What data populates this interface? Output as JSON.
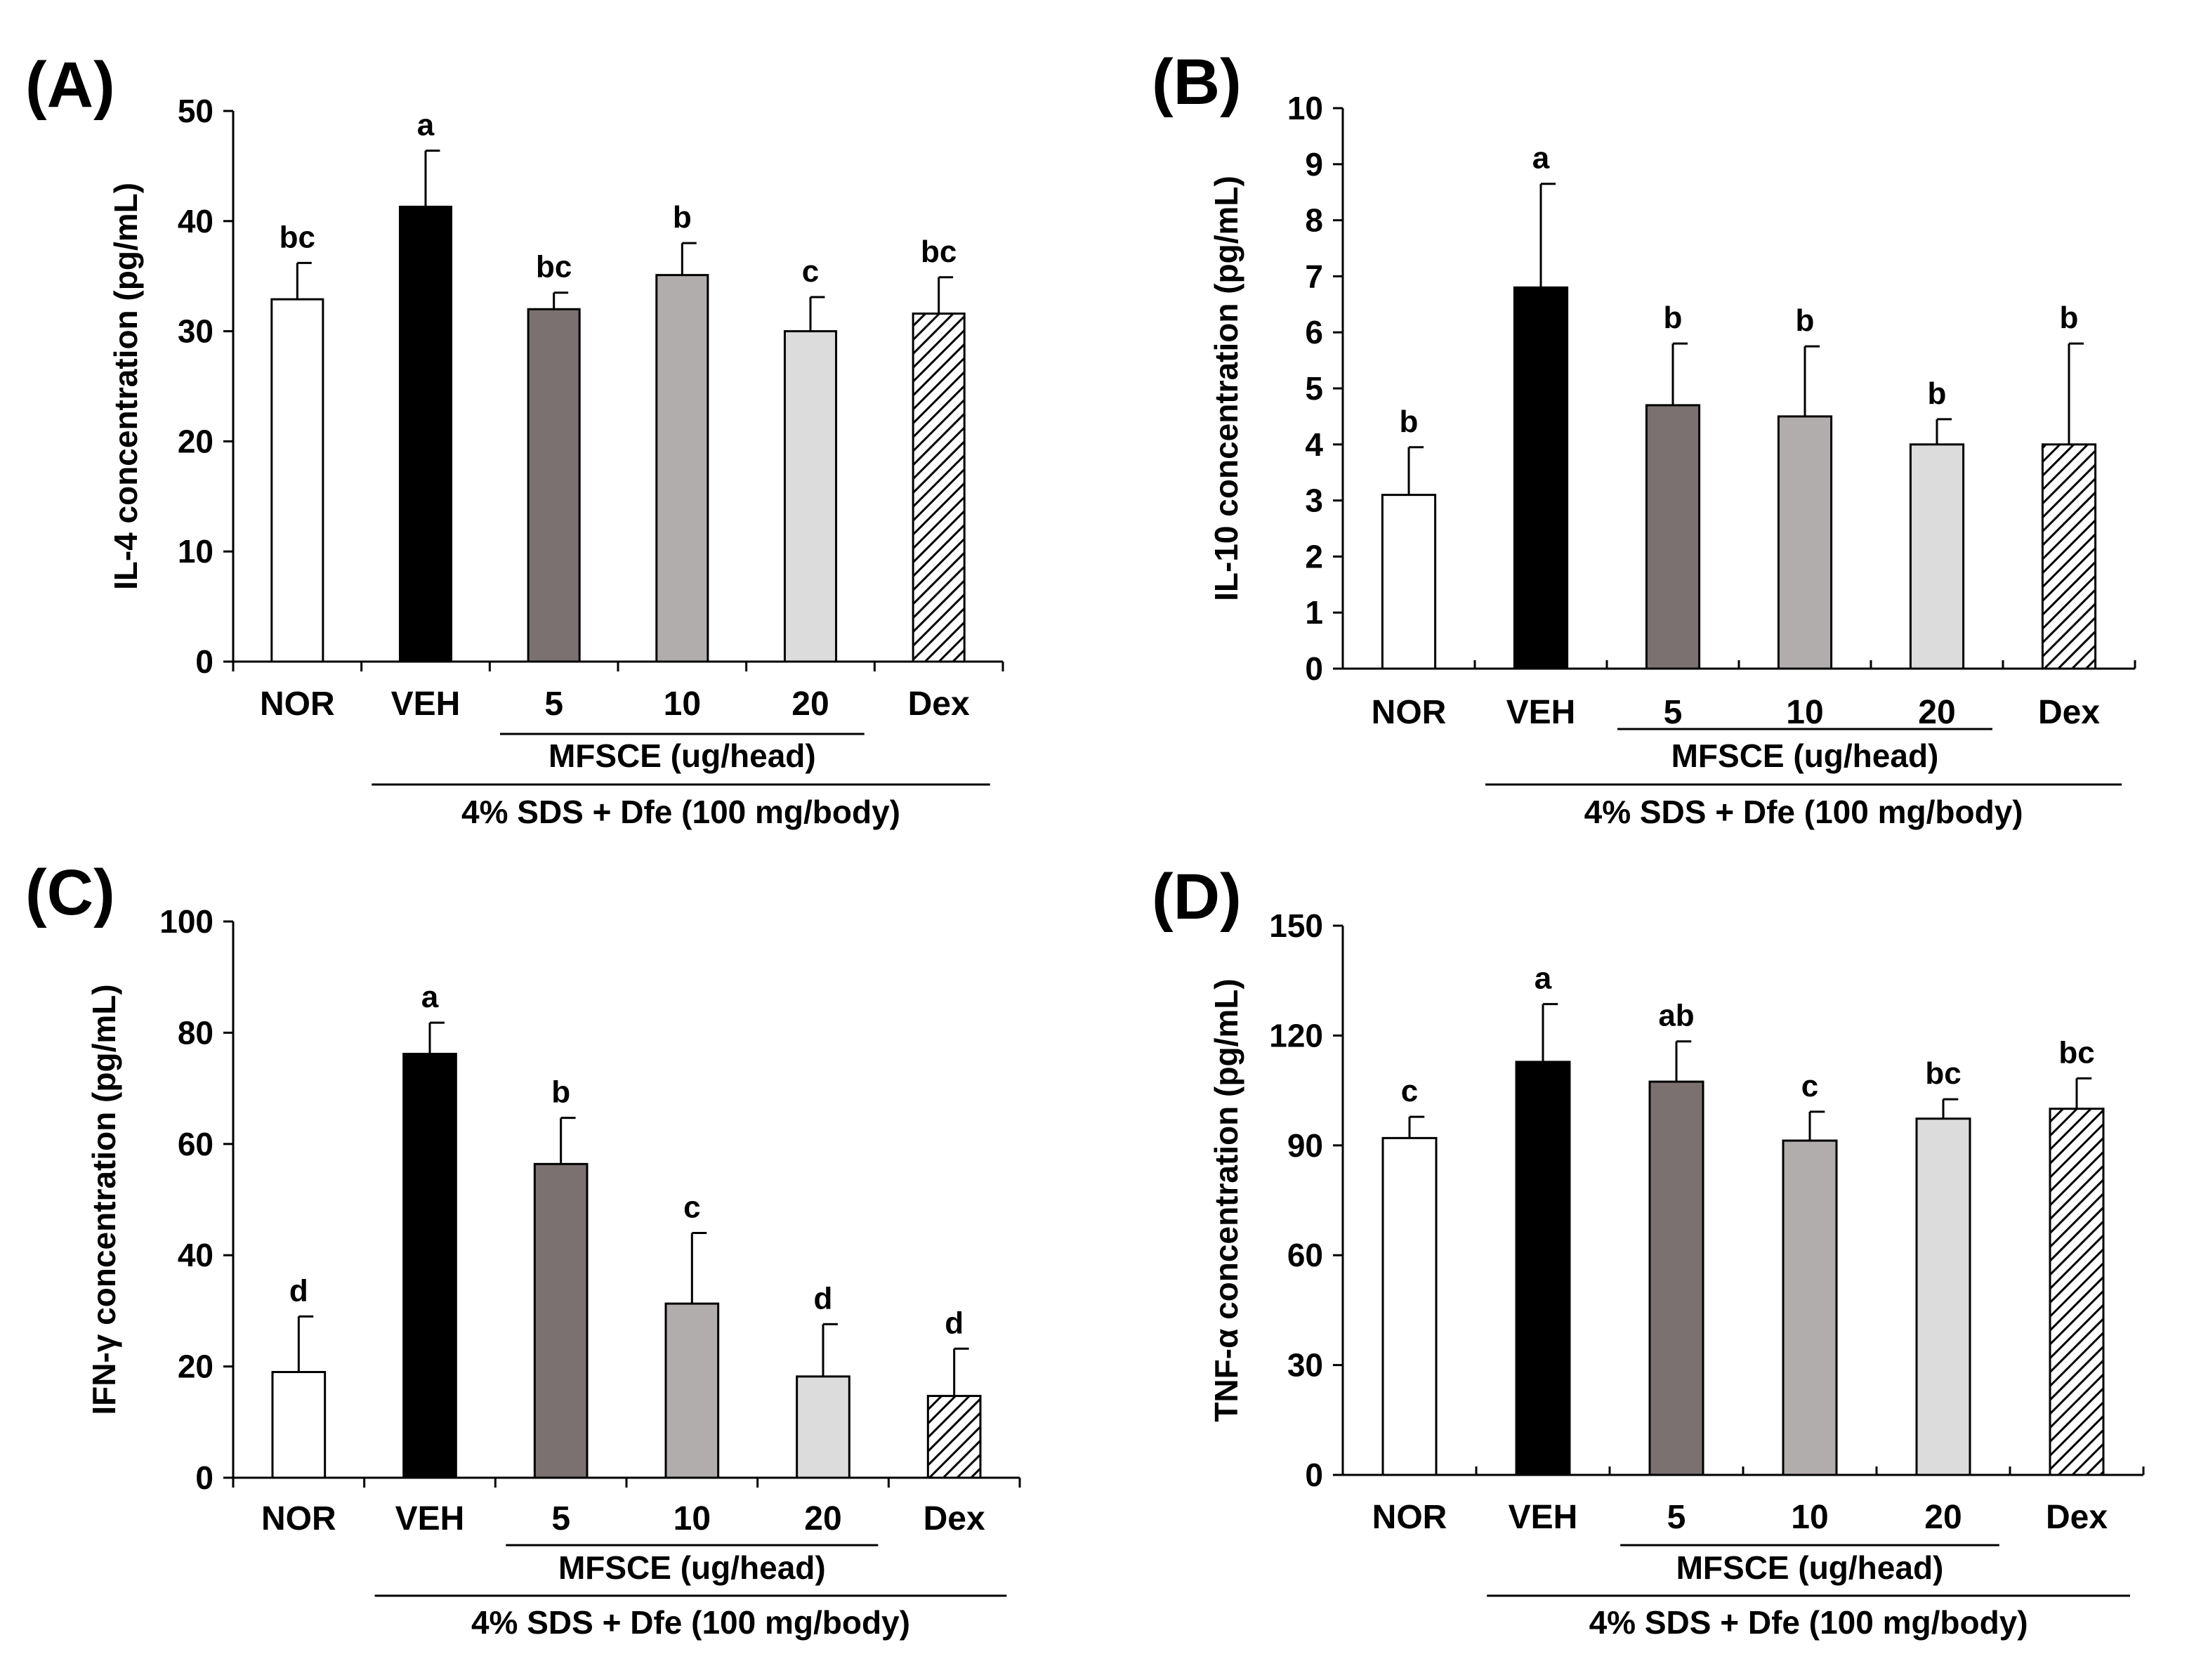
{
  "colors": {
    "axis": "#000000",
    "NOR": "#ffffff",
    "VEH": "#000000",
    "5": "#7a7170",
    "10": "#b1adac",
    "20": "#dcdcdc",
    "Dex": "hatch"
  },
  "chart_data": [
    {
      "type": "bar",
      "panel_label": "(A)",
      "ylabel": "IL-4 concentration (pg/mL)",
      "ylim": [
        0,
        50
      ],
      "yticks": [
        0,
        10,
        20,
        30,
        40,
        50
      ],
      "categories": [
        "NOR",
        "VEH",
        "5",
        "10",
        "20",
        "Dex"
      ],
      "values": [
        32.9,
        41.3,
        32.0,
        35.1,
        30.0,
        31.6
      ],
      "errors": [
        3.3,
        5.1,
        1.5,
        2.9,
        3.1,
        3.3
      ],
      "sig_letters": [
        "bc",
        "a",
        "bc",
        "b",
        "c",
        "bc"
      ],
      "group_label": "MFSCE (ug/head)",
      "treatment_label": "4% SDS + Dfe (100 mg/body)"
    },
    {
      "type": "bar",
      "panel_label": "(B)",
      "ylabel": "IL-10 concentration (pg/mL)",
      "ylim": [
        0,
        10
      ],
      "yticks": [
        0,
        1,
        2,
        3,
        4,
        5,
        6,
        7,
        8,
        9,
        10
      ],
      "categories": [
        "NOR",
        "VEH",
        "5",
        "10",
        "20",
        "Dex"
      ],
      "values": [
        3.1,
        6.8,
        4.7,
        4.5,
        4.0,
        4.0
      ],
      "errors": [
        0.85,
        1.85,
        1.1,
        1.25,
        0.45,
        1.8
      ],
      "sig_letters": [
        "b",
        "a",
        "b",
        "b",
        "b",
        "b"
      ],
      "group_label": "MFSCE (ug/head)",
      "treatment_label": "4% SDS + Dfe (100 mg/body)"
    },
    {
      "type": "bar",
      "panel_label": "(C)",
      "ylabel": "IFN-γ concentration (pg/mL)",
      "ylim": [
        0,
        100
      ],
      "yticks": [
        0,
        20,
        40,
        60,
        80,
        100
      ],
      "categories": [
        "NOR",
        "VEH",
        "5",
        "10",
        "20",
        "Dex"
      ],
      "values": [
        19.0,
        76.2,
        56.4,
        31.3,
        18.2,
        14.7
      ],
      "errors": [
        10.0,
        5.6,
        8.3,
        12.7,
        9.4,
        8.5
      ],
      "sig_letters": [
        "d",
        "a",
        "b",
        "c",
        "d",
        "d"
      ],
      "group_label": "MFSCE (ug/head)",
      "treatment_label": "4% SDS + Dfe (100 mg/body)"
    },
    {
      "type": "bar",
      "panel_label": "(D)",
      "ylabel": "TNF-α concentration (pg/mL)",
      "ylim": [
        0,
        150
      ],
      "yticks": [
        0,
        30,
        60,
        90,
        120,
        150
      ],
      "categories": [
        "NOR",
        "VEH",
        "5",
        "10",
        "20",
        "Dex"
      ],
      "values": [
        92.0,
        112.8,
        107.4,
        91.3,
        97.3,
        100.0
      ],
      "errors": [
        5.8,
        15.8,
        11.0,
        7.9,
        5.3,
        8.3
      ],
      "sig_letters": [
        "c",
        "a",
        "ab",
        "c",
        "bc",
        "bc"
      ],
      "group_label": "MFSCE (ug/head)",
      "treatment_label": "4% SDS + Dfe (100 mg/body)"
    }
  ]
}
